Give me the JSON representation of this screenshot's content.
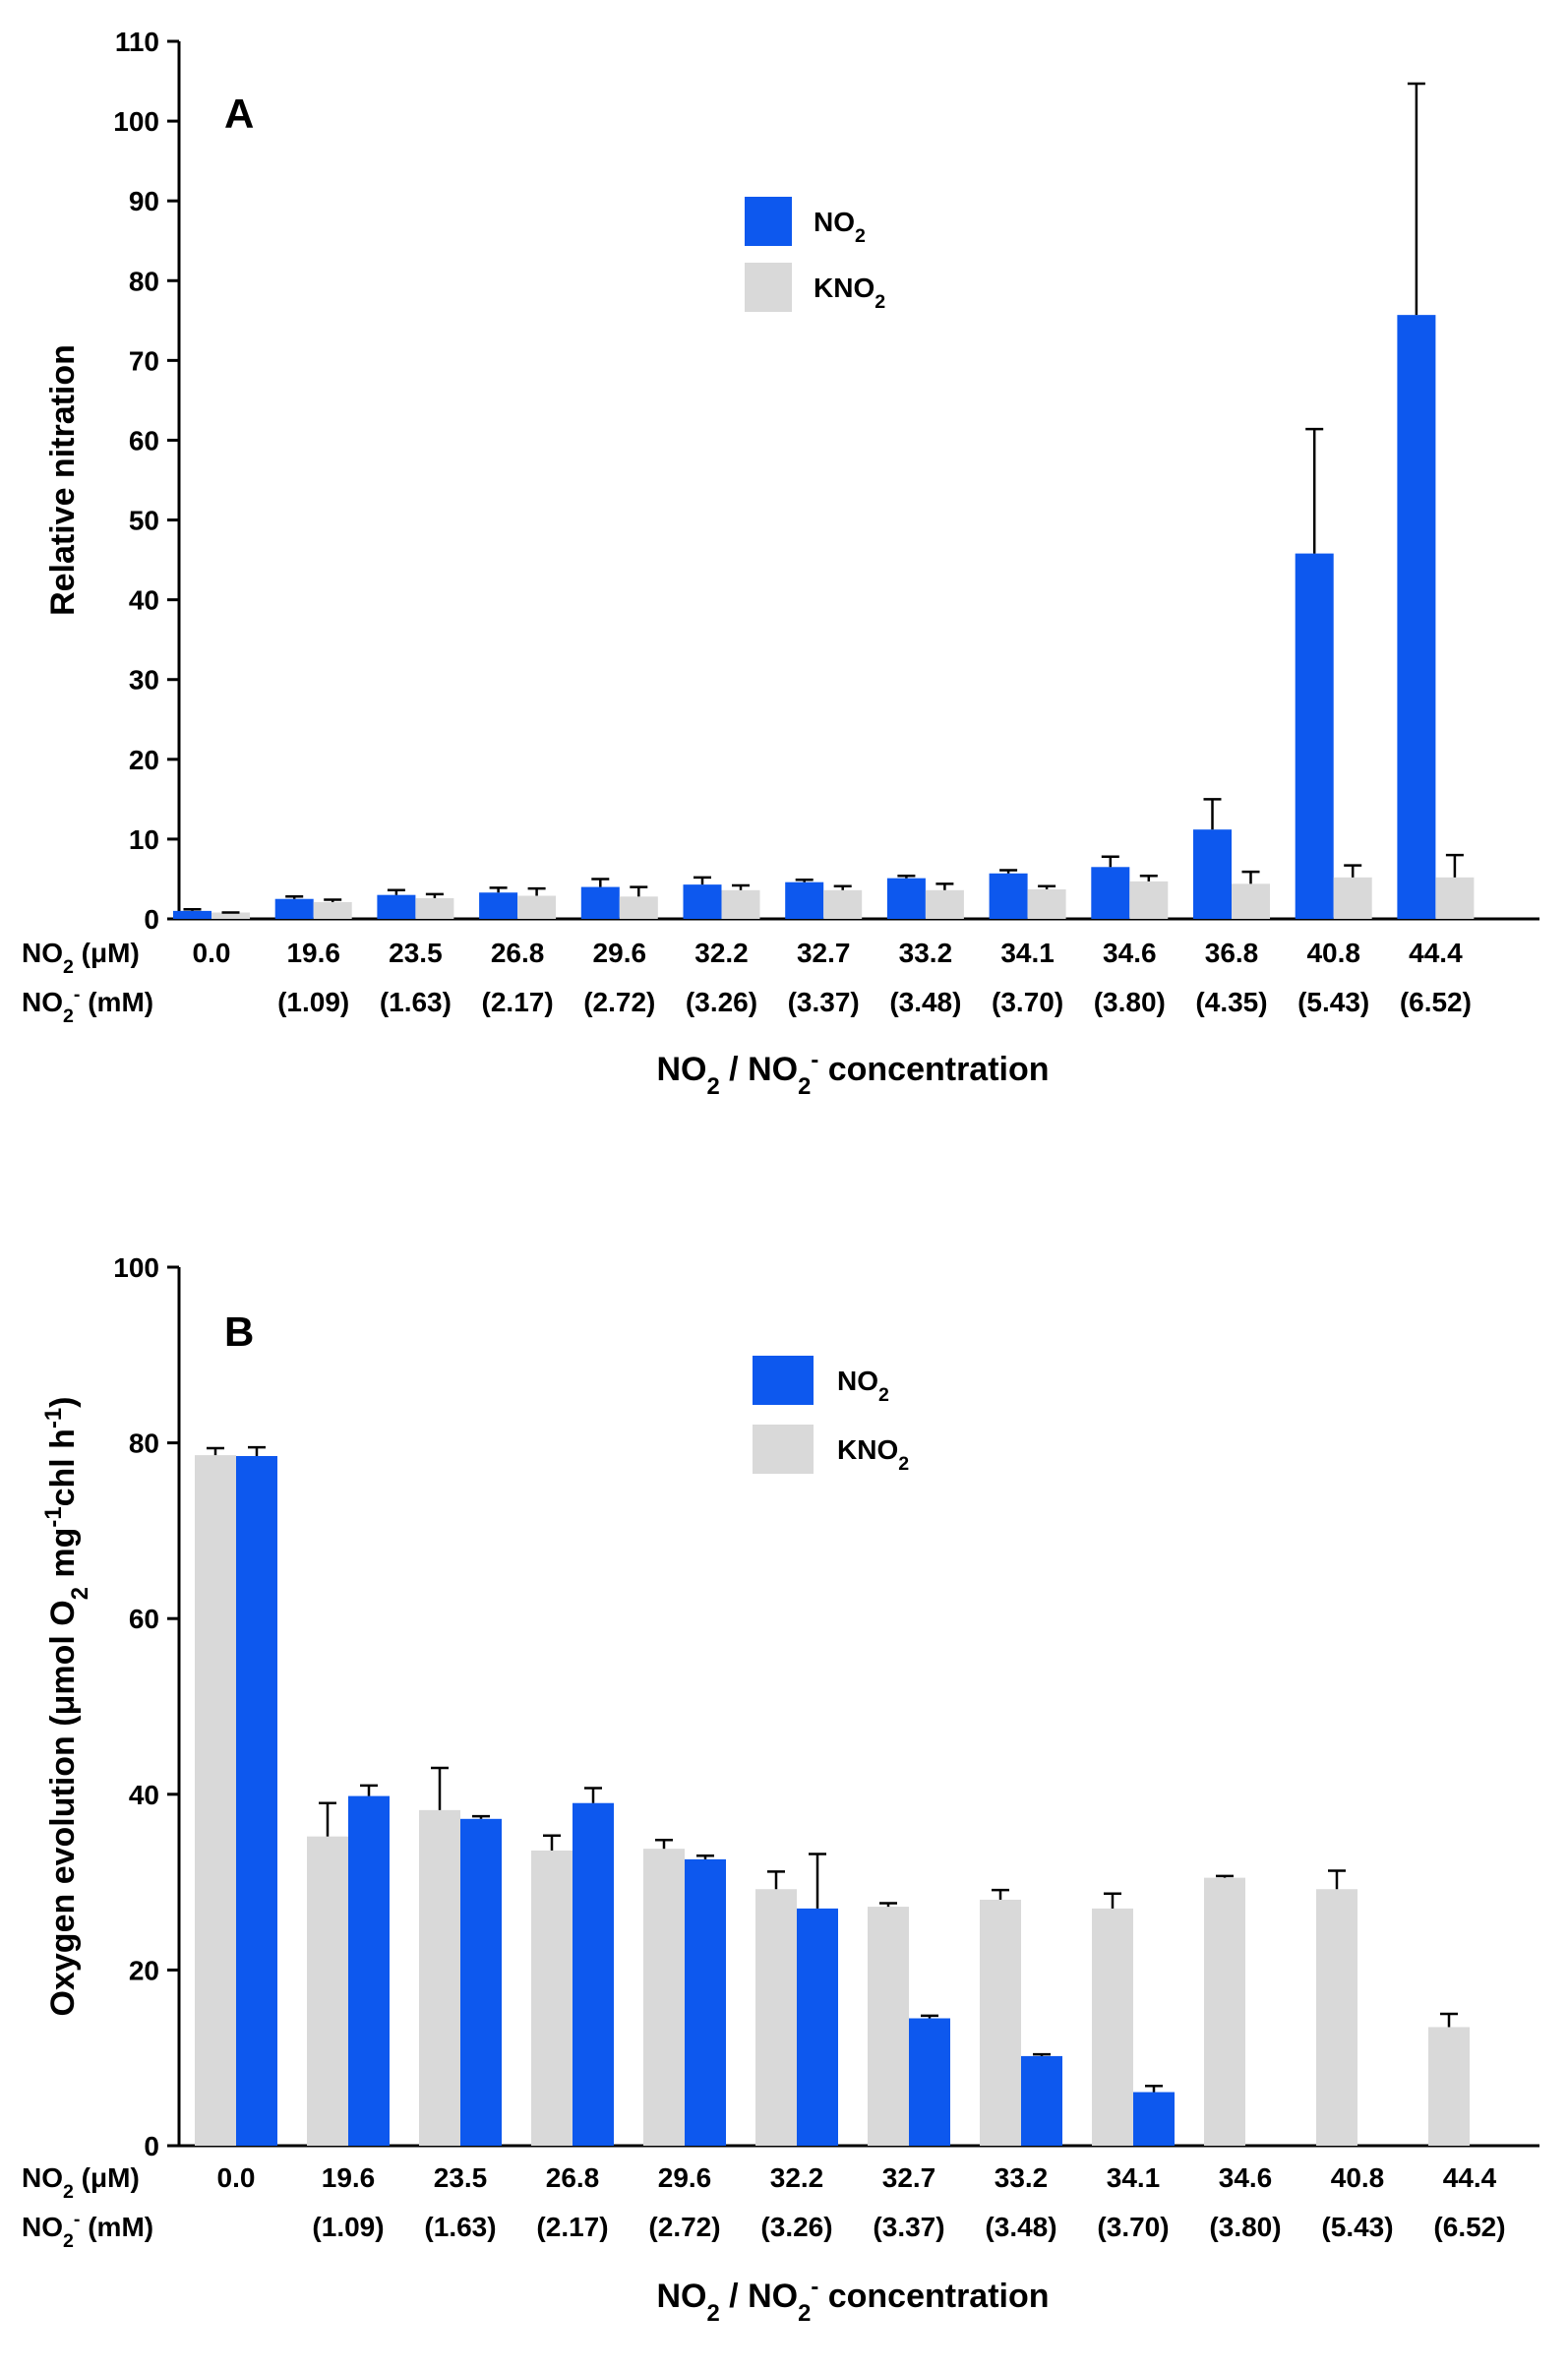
{
  "colors": {
    "no2": "#0d58ee",
    "kno2": "#d9d9d9",
    "axis": "#000000"
  },
  "chart_data": [
    {
      "type": "bar",
      "panel_label": "A",
      "ylabel": "Relative nitration",
      "xlabel_html": "NO<tspan baseline-shift=\"sub\" font-size=\"70%\">2</tspan> / NO<tspan baseline-shift=\"sub\" font-size=\"70%\">2</tspan><tspan baseline-shift=\"super\" font-size=\"70%\">-</tspan> concentration",
      "row1_label_html": "NO<tspan baseline-shift=\"sub\" font-size=\"70%\">2</tspan> (μM)",
      "row2_label_html": "NO<tspan baseline-shift=\"sub\" font-size=\"70%\">2</tspan><tspan baseline-shift=\"super\" font-size=\"70%\">-</tspan> (mM)",
      "ylim": [
        0,
        110
      ],
      "yticks": [
        0,
        10,
        20,
        30,
        40,
        50,
        60,
        70,
        80,
        90,
        100,
        110
      ],
      "categories": [
        "0.0",
        "19.6",
        "23.5",
        "26.8",
        "29.6",
        "32.2",
        "32.7",
        "33.2",
        "34.1",
        "34.6",
        "36.8",
        "40.8",
        "44.4"
      ],
      "sub_categories": [
        "",
        "(1.09)",
        "(1.63)",
        "(2.17)",
        "(2.72)",
        "(3.26)",
        "(3.37)",
        "(3.48)",
        "(3.70)",
        "(3.80)",
        "(4.35)",
        "(5.43)",
        "(6.52)"
      ],
      "bar_order": [
        "NO2",
        "KNO2"
      ],
      "series": [
        {
          "key": "NO2",
          "name_html": "NO<tspan baseline-shift=\"sub\" font-size=\"70%\">2</tspan>",
          "color": "#0d58ee",
          "values": [
            1.0,
            2.5,
            3.0,
            3.3,
            4.0,
            4.3,
            4.6,
            5.1,
            5.7,
            6.5,
            11.2,
            45.8,
            75.7
          ],
          "errors": [
            0.2,
            0.3,
            0.6,
            0.6,
            1.0,
            0.9,
            0.3,
            0.3,
            0.4,
            1.3,
            3.8,
            15.6,
            29.0
          ]
        },
        {
          "key": "KNO2",
          "name_html": "KNO<tspan baseline-shift=\"sub\" font-size=\"70%\">2</tspan>",
          "color": "#d9d9d9",
          "values": [
            0.8,
            2.1,
            2.6,
            2.9,
            2.8,
            3.6,
            3.6,
            3.6,
            3.7,
            4.7,
            4.4,
            5.2,
            5.2
          ],
          "errors": [
            0.0,
            0.3,
            0.5,
            0.9,
            1.2,
            0.6,
            0.5,
            0.8,
            0.4,
            0.7,
            1.5,
            1.5,
            2.8
          ]
        }
      ],
      "legend": "upper-center"
    },
    {
      "type": "bar",
      "panel_label": "B",
      "ylabel_html": "Oxygen evolution (μmol O<tspan baseline-shift=\"sub\" font-size=\"70%\">2</tspan> mg<tspan baseline-shift=\"super\" font-size=\"70%\">-1</tspan>chl h<tspan baseline-shift=\"super\" font-size=\"70%\">-1</tspan>)",
      "xlabel_html": "NO<tspan baseline-shift=\"sub\" font-size=\"70%\">2</tspan> / NO<tspan baseline-shift=\"sub\" font-size=\"70%\">2</tspan><tspan baseline-shift=\"super\" font-size=\"70%\">-</tspan> concentration",
      "row1_label_html": "NO<tspan baseline-shift=\"sub\" font-size=\"70%\">2</tspan> (μM)",
      "row2_label_html": "NO<tspan baseline-shift=\"sub\" font-size=\"70%\">2</tspan><tspan baseline-shift=\"super\" font-size=\"70%\">-</tspan> (mM)",
      "ylim": [
        0,
        100
      ],
      "yticks": [
        0,
        20,
        40,
        60,
        80,
        100
      ],
      "categories": [
        "0.0",
        "19.6",
        "23.5",
        "26.8",
        "29.6",
        "32.2",
        "32.7",
        "33.2",
        "34.1",
        "34.6",
        "40.8",
        "44.4"
      ],
      "sub_categories": [
        "",
        "(1.09)",
        "(1.63)",
        "(2.17)",
        "(2.72)",
        "(3.26)",
        "(3.37)",
        "(3.48)",
        "(3.70)",
        "(3.80)",
        "(5.43)",
        "(6.52)"
      ],
      "bar_order": [
        "KNO2",
        "NO2"
      ],
      "series": [
        {
          "key": "NO2",
          "name_html": "NO<tspan baseline-shift=\"sub\" font-size=\"70%\">2</tspan>",
          "color": "#0d58ee",
          "values": [
            78.5,
            39.8,
            37.2,
            39.0,
            32.6,
            27.0,
            14.5,
            10.2,
            6.1,
            0.0,
            0.0,
            0.0
          ],
          "errors": [
            1.0,
            1.2,
            0.3,
            1.7,
            0.4,
            6.2,
            0.3,
            0.2,
            0.7,
            0.0,
            0.0,
            0.0
          ]
        },
        {
          "key": "KNO2",
          "name_html": "KNO<tspan baseline-shift=\"sub\" font-size=\"70%\">2</tspan>",
          "color": "#d9d9d9",
          "values": [
            78.6,
            35.2,
            38.2,
            33.6,
            33.8,
            29.2,
            27.2,
            28.0,
            27.0,
            30.5,
            29.2,
            13.5
          ],
          "errors": [
            0.8,
            3.8,
            4.8,
            1.7,
            1.0,
            2.0,
            0.4,
            1.1,
            1.7,
            0.2,
            2.1,
            1.5
          ]
        }
      ],
      "legend": "upper-center"
    }
  ]
}
